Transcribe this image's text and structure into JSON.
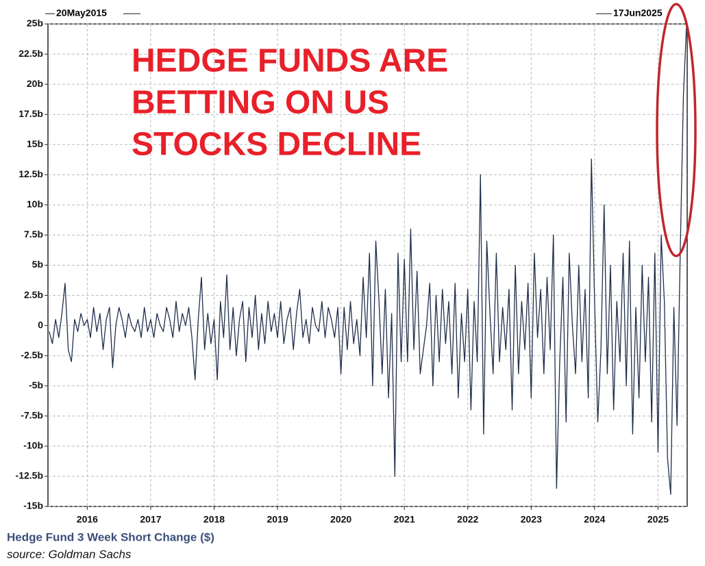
{
  "chart_data": {
    "type": "line",
    "start_label": "20May2015",
    "end_label": "17Jun2025",
    "annotation": [
      "HEDGE FUNDS ARE",
      "BETTING ON US",
      "STOCKS DECLINE"
    ],
    "source": "source: Goldman Sachs",
    "xlim": [
      2015.38,
      2025.46
    ],
    "xticks": [
      2016,
      2017,
      2018,
      2019,
      2020,
      2021,
      2022,
      2023,
      2024,
      2025
    ],
    "ylim": [
      -15,
      25
    ],
    "yticks": [
      {
        "value": -15,
        "label": "-15b"
      },
      {
        "value": -12.5,
        "label": "-12.5b"
      },
      {
        "value": -10,
        "label": "-10b"
      },
      {
        "value": -7.5,
        "label": "-7.5b"
      },
      {
        "value": -5,
        "label": "-5b"
      },
      {
        "value": -2.5,
        "label": "-2.5b"
      },
      0,
      {
        "value": 2.5,
        "label": "2.5b"
      },
      {
        "value": 5,
        "label": "5b"
      },
      {
        "value": 7.5,
        "label": "7.5b"
      },
      {
        "value": 10,
        "label": "10b"
      },
      {
        "value": 12.5,
        "label": "12.5b"
      },
      {
        "value": 15,
        "label": "15b"
      },
      {
        "value": 17.5,
        "label": "17.5b"
      },
      {
        "value": 20,
        "label": "20b"
      },
      {
        "value": 22.5,
        "label": "22.5b"
      },
      {
        "value": 25,
        "label": "25b"
      }
    ],
    "grid": true,
    "x": [
      2015.4,
      2015.45,
      2015.5,
      2015.55,
      2015.6,
      2015.65,
      2015.7,
      2015.75,
      2015.8,
      2015.85,
      2015.9,
      2015.95,
      2016,
      2016.05,
      2016.1,
      2016.15,
      2016.2,
      2016.25,
      2016.3,
      2016.35,
      2016.4,
      2016.45,
      2016.5,
      2016.55,
      2016.6,
      2016.65,
      2016.7,
      2016.75,
      2016.8,
      2016.85,
      2016.9,
      2016.95,
      2017,
      2017.05,
      2017.1,
      2017.15,
      2017.2,
      2017.25,
      2017.3,
      2017.35,
      2017.4,
      2017.45,
      2017.5,
      2017.55,
      2017.6,
      2017.65,
      2017.7,
      2017.75,
      2017.8,
      2017.85,
      2017.9,
      2017.95,
      2018,
      2018.05,
      2018.1,
      2018.15,
      2018.2,
      2018.25,
      2018.3,
      2018.35,
      2018.4,
      2018.45,
      2018.5,
      2018.55,
      2018.6,
      2018.65,
      2018.7,
      2018.75,
      2018.8,
      2018.85,
      2018.9,
      2018.95,
      2019,
      2019.05,
      2019.1,
      2019.15,
      2019.2,
      2019.25,
      2019.3,
      2019.35,
      2019.4,
      2019.45,
      2019.5,
      2019.55,
      2019.6,
      2019.65,
      2019.7,
      2019.75,
      2019.8,
      2019.85,
      2019.9,
      2019.95,
      2020,
      2020.05,
      2020.1,
      2020.15,
      2020.2,
      2020.25,
      2020.3,
      2020.35,
      2020.4,
      2020.45,
      2020.5,
      2020.55,
      2020.6,
      2020.65,
      2020.7,
      2020.75,
      2020.8,
      2020.85,
      2020.9,
      2020.95,
      2021,
      2021.05,
      2021.1,
      2021.15,
      2021.2,
      2021.25,
      2021.3,
      2021.35,
      2021.4,
      2021.45,
      2021.5,
      2021.55,
      2021.6,
      2021.65,
      2021.7,
      2021.75,
      2021.8,
      2021.85,
      2021.9,
      2021.95,
      2022,
      2022.05,
      2022.1,
      2022.15,
      2022.2,
      2022.25,
      2022.3,
      2022.35,
      2022.4,
      2022.45,
      2022.5,
      2022.55,
      2022.6,
      2022.65,
      2022.7,
      2022.75,
      2022.8,
      2022.85,
      2022.9,
      2022.95,
      2023,
      2023.05,
      2023.1,
      2023.15,
      2023.2,
      2023.25,
      2023.3,
      2023.35,
      2023.4,
      2023.45,
      2023.5,
      2023.55,
      2023.6,
      2023.65,
      2023.7,
      2023.75,
      2023.8,
      2023.85,
      2023.9,
      2023.95,
      2024,
      2024.05,
      2024.1,
      2024.15,
      2024.2,
      2024.25,
      2024.3,
      2024.35,
      2024.4,
      2024.45,
      2024.5,
      2024.55,
      2024.6,
      2024.65,
      2024.7,
      2024.75,
      2024.8,
      2024.85,
      2024.9,
      2024.95,
      2025,
      2025.05,
      2025.1,
      2025.15,
      2025.2,
      2025.25,
      2025.3,
      2025.35,
      2025.4,
      2025.45
    ],
    "series": [
      {
        "name": "Hedge Fund 3 Week Short Change ($)",
        "color": "#1f2d4a",
        "values": [
          -0.5,
          -1.5,
          0.5,
          -1,
          1,
          3.5,
          -2,
          -3,
          0.5,
          -0.5,
          1,
          0,
          0.5,
          -1,
          1.5,
          -0.5,
          1,
          -2,
          0.5,
          1.5,
          -3.5,
          0,
          1.5,
          0.5,
          -1,
          1,
          0,
          -0.5,
          0.5,
          -1,
          1.5,
          -0.5,
          0.5,
          -1,
          1,
          0,
          -0.5,
          1.5,
          0.5,
          -1,
          2,
          -0.5,
          1,
          0,
          1.5,
          -1,
          -4.5,
          0.5,
          4,
          -2,
          1,
          -1.5,
          0.5,
          -4.5,
          2,
          -1,
          4.2,
          -2,
          1.5,
          -2.5,
          0.5,
          2,
          -3,
          1.5,
          -1,
          2.5,
          -2,
          1,
          -1.5,
          2,
          -0.5,
          1,
          -1,
          2,
          -1.5,
          0.5,
          1.5,
          -2,
          1,
          3,
          -1,
          0.5,
          -1.5,
          1.5,
          0,
          -0.5,
          2,
          -1,
          1.5,
          0.5,
          -1,
          1.5,
          -4,
          1.5,
          -2,
          2,
          -1.5,
          0.5,
          -2.5,
          4,
          -1,
          6,
          -5,
          7,
          2,
          -4,
          3,
          -6,
          1,
          -12.5,
          6,
          -3,
          5.5,
          -3,
          8,
          -2,
          4.5,
          -4,
          -2,
          0,
          3.5,
          -5,
          2.5,
          -3,
          3,
          -1.5,
          2,
          -4,
          3.5,
          -6,
          1,
          -3,
          3,
          -7,
          2,
          -3,
          12.5,
          -9,
          7,
          1,
          -4,
          6,
          -3,
          1.5,
          -2,
          3,
          -7,
          5,
          -4,
          2,
          -2,
          3.5,
          -6,
          6,
          -1,
          3,
          -4,
          4,
          -2,
          7.5,
          -13.5,
          -3,
          4,
          -8,
          6,
          0,
          -4,
          5,
          -3,
          3,
          -6,
          13.8,
          2,
          -8,
          -2,
          10,
          -4,
          5,
          -7,
          2,
          -3,
          6,
          -5,
          7,
          -9,
          1.5,
          -6,
          5,
          -3,
          4,
          -8,
          6,
          -10.5,
          7.5,
          2,
          -11,
          -14,
          1.5,
          -8.3,
          6,
          19,
          25
        ]
      }
    ]
  }
}
